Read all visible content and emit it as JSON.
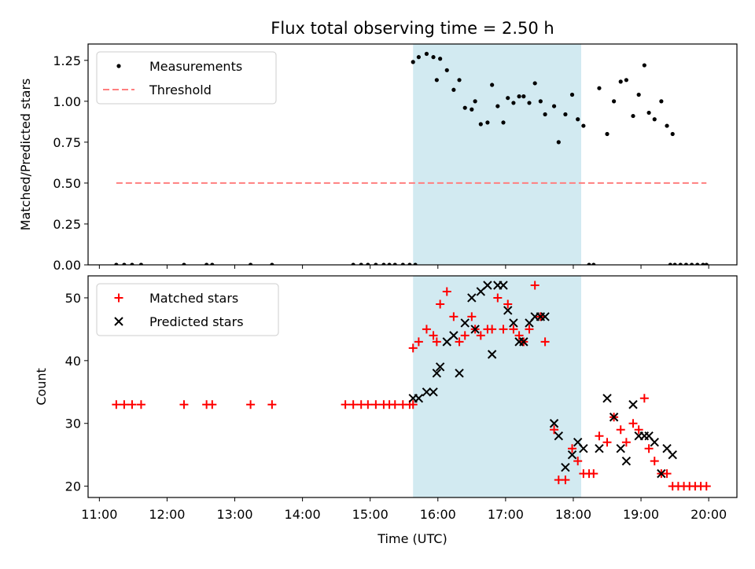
{
  "title": "Flux total observing time = 2.50 h",
  "shade_interval": [
    "15:38",
    "18:07"
  ],
  "colors": {
    "shade": "#add8e6",
    "measurement": "#000000",
    "threshold": "#ff7f7f",
    "matched": "#ff0000",
    "predicted": "#000000"
  },
  "chart_data": [
    {
      "type": "scatter",
      "ylabel": "Matched/Predicted stars",
      "ylim": [
        0,
        1.35
      ],
      "yticks": [
        "0.00",
        "0.25",
        "0.50",
        "0.75",
        "1.00",
        "1.25"
      ],
      "xlim": [
        "10:50",
        "20:25"
      ],
      "legend": {
        "placement": "top-left",
        "entries": [
          "Measurements",
          "Threshold"
        ]
      },
      "threshold": {
        "value": 0.5,
        "x_range": [
          "11:15",
          "19:58"
        ]
      },
      "series": [
        {
          "name": "Measurements",
          "points": [
            [
              "11:15",
              0
            ],
            [
              "11:22",
              0
            ],
            [
              "11:29",
              0
            ],
            [
              "11:37",
              0
            ],
            [
              "12:15",
              0
            ],
            [
              "12:35",
              0
            ],
            [
              "12:40",
              0
            ],
            [
              "13:14",
              0
            ],
            [
              "13:33",
              0
            ],
            [
              "14:45",
              0
            ],
            [
              "14:52",
              0
            ],
            [
              "14:58",
              0
            ],
            [
              "15:05",
              0
            ],
            [
              "15:12",
              0
            ],
            [
              "15:17",
              0
            ],
            [
              "15:22",
              0
            ],
            [
              "15:29",
              0
            ],
            [
              "15:35",
              0
            ],
            [
              "15:40",
              0
            ],
            [
              "15:38",
              1.24
            ],
            [
              "15:43",
              1.27
            ],
            [
              "15:50",
              1.29
            ],
            [
              "15:56",
              1.27
            ],
            [
              "15:59",
              1.13
            ],
            [
              "16:02",
              1.26
            ],
            [
              "16:08",
              1.19
            ],
            [
              "16:14",
              1.07
            ],
            [
              "16:19",
              1.13
            ],
            [
              "16:24",
              0.96
            ],
            [
              "16:30",
              0.95
            ],
            [
              "16:33",
              1.0
            ],
            [
              "16:38",
              0.86
            ],
            [
              "16:44",
              0.87
            ],
            [
              "16:48",
              1.1
            ],
            [
              "16:53",
              0.97
            ],
            [
              "16:58",
              0.87
            ],
            [
              "17:02",
              1.02
            ],
            [
              "17:07",
              0.99
            ],
            [
              "17:12",
              1.03
            ],
            [
              "17:16",
              1.03
            ],
            [
              "17:21",
              0.99
            ],
            [
              "17:26",
              1.11
            ],
            [
              "17:31",
              1.0
            ],
            [
              "17:35",
              0.92
            ],
            [
              "17:43",
              0.97
            ],
            [
              "17:47",
              0.75
            ],
            [
              "17:53",
              0.92
            ],
            [
              "17:59",
              1.04
            ],
            [
              "18:04",
              0.89
            ],
            [
              "18:09",
              0.85
            ],
            [
              "18:14",
              0
            ],
            [
              "18:18",
              0
            ],
            [
              "18:23",
              1.08
            ],
            [
              "18:30",
              0.8
            ],
            [
              "18:36",
              1.0
            ],
            [
              "18:42",
              1.12
            ],
            [
              "18:47",
              1.13
            ],
            [
              "18:53",
              0.91
            ],
            [
              "18:58",
              1.04
            ],
            [
              "19:03",
              1.22
            ],
            [
              "19:07",
              0.93
            ],
            [
              "19:12",
              0.89
            ],
            [
              "19:18",
              1.0
            ],
            [
              "19:23",
              0.85
            ],
            [
              "19:28",
              0.8
            ],
            [
              "19:26",
              0
            ],
            [
              "19:30",
              0
            ],
            [
              "19:35",
              0
            ],
            [
              "19:40",
              0
            ],
            [
              "19:45",
              0
            ],
            [
              "19:50",
              0
            ],
            [
              "19:55",
              0
            ],
            [
              "19:58",
              0
            ]
          ]
        }
      ]
    },
    {
      "type": "scatter",
      "ylabel": "Count",
      "xlabel": "Time (UTC)",
      "ylim": [
        18.2,
        53.5
      ],
      "yticks": [
        "20",
        "30",
        "40",
        "50"
      ],
      "xlim": [
        "10:50",
        "20:25"
      ],
      "xticks": [
        "11:00",
        "12:00",
        "13:00",
        "14:00",
        "15:00",
        "16:00",
        "17:00",
        "18:00",
        "19:00",
        "20:00"
      ],
      "legend": {
        "placement": "top-left",
        "entries": [
          "Matched stars",
          "Predicted stars"
        ]
      },
      "series": [
        {
          "name": "Matched stars",
          "points": [
            [
              "11:15",
              33
            ],
            [
              "11:22",
              33
            ],
            [
              "11:29",
              33
            ],
            [
              "11:37",
              33
            ],
            [
              "12:15",
              33
            ],
            [
              "12:35",
              33
            ],
            [
              "12:40",
              33
            ],
            [
              "13:14",
              33
            ],
            [
              "13:33",
              33
            ],
            [
              "14:38",
              33
            ],
            [
              "14:45",
              33
            ],
            [
              "14:52",
              33
            ],
            [
              "14:58",
              33
            ],
            [
              "15:05",
              33
            ],
            [
              "15:12",
              33
            ],
            [
              "15:17",
              33
            ],
            [
              "15:22",
              33
            ],
            [
              "15:29",
              33
            ],
            [
              "15:35",
              33
            ],
            [
              "15:38",
              33
            ],
            [
              "15:38",
              42
            ],
            [
              "15:43",
              43
            ],
            [
              "15:50",
              45
            ],
            [
              "15:56",
              44
            ],
            [
              "15:59",
              43
            ],
            [
              "16:02",
              49
            ],
            [
              "16:08",
              51
            ],
            [
              "16:14",
              47
            ],
            [
              "16:19",
              43
            ],
            [
              "16:24",
              44
            ],
            [
              "16:30",
              47
            ],
            [
              "16:33",
              45
            ],
            [
              "16:38",
              44
            ],
            [
              "16:44",
              45
            ],
            [
              "16:48",
              45
            ],
            [
              "16:53",
              50
            ],
            [
              "16:58",
              45
            ],
            [
              "17:02",
              49
            ],
            [
              "17:07",
              45
            ],
            [
              "17:12",
              44
            ],
            [
              "17:16",
              43
            ],
            [
              "17:21",
              45
            ],
            [
              "17:26",
              52
            ],
            [
              "17:31",
              47
            ],
            [
              "17:35",
              43
            ],
            [
              "17:43",
              29
            ],
            [
              "17:47",
              21
            ],
            [
              "17:53",
              21
            ],
            [
              "17:59",
              26
            ],
            [
              "18:04",
              24
            ],
            [
              "18:09",
              22
            ],
            [
              "18:14",
              22
            ],
            [
              "18:18",
              22
            ],
            [
              "18:23",
              28
            ],
            [
              "18:30",
              27
            ],
            [
              "18:36",
              31
            ],
            [
              "18:42",
              29
            ],
            [
              "18:47",
              27
            ],
            [
              "18:53",
              30
            ],
            [
              "18:58",
              29
            ],
            [
              "19:03",
              34
            ],
            [
              "19:07",
              26
            ],
            [
              "19:12",
              24
            ],
            [
              "19:18",
              22
            ],
            [
              "19:23",
              22
            ],
            [
              "19:28",
              20
            ],
            [
              "19:33",
              20
            ],
            [
              "19:38",
              20
            ],
            [
              "19:43",
              20
            ],
            [
              "19:48",
              20
            ],
            [
              "19:53",
              20
            ],
            [
              "19:58",
              20
            ]
          ]
        },
        {
          "name": "Predicted stars",
          "points": [
            [
              "15:38",
              34
            ],
            [
              "15:43",
              34
            ],
            [
              "15:50",
              35
            ],
            [
              "15:56",
              35
            ],
            [
              "15:59",
              38
            ],
            [
              "16:02",
              39
            ],
            [
              "16:08",
              43
            ],
            [
              "16:14",
              44
            ],
            [
              "16:19",
              38
            ],
            [
              "16:24",
              46
            ],
            [
              "16:30",
              50
            ],
            [
              "16:33",
              45
            ],
            [
              "16:38",
              51
            ],
            [
              "16:44",
              52
            ],
            [
              "16:48",
              41
            ],
            [
              "16:53",
              52
            ],
            [
              "16:58",
              52
            ],
            [
              "17:02",
              48
            ],
            [
              "17:07",
              46
            ],
            [
              "17:12",
              43
            ],
            [
              "17:16",
              43
            ],
            [
              "17:21",
              46
            ],
            [
              "17:26",
              47
            ],
            [
              "17:31",
              47
            ],
            [
              "17:35",
              47
            ],
            [
              "17:43",
              30
            ],
            [
              "17:47",
              28
            ],
            [
              "17:53",
              23
            ],
            [
              "17:59",
              25
            ],
            [
              "18:04",
              27
            ],
            [
              "18:09",
              26
            ],
            [
              "18:23",
              26
            ],
            [
              "18:30",
              34
            ],
            [
              "18:36",
              31
            ],
            [
              "18:42",
              26
            ],
            [
              "18:47",
              24
            ],
            [
              "18:53",
              33
            ],
            [
              "18:58",
              28
            ],
            [
              "19:03",
              28
            ],
            [
              "19:07",
              28
            ],
            [
              "19:12",
              27
            ],
            [
              "19:18",
              22
            ],
            [
              "19:23",
              26
            ],
            [
              "19:28",
              25
            ]
          ]
        }
      ]
    }
  ]
}
